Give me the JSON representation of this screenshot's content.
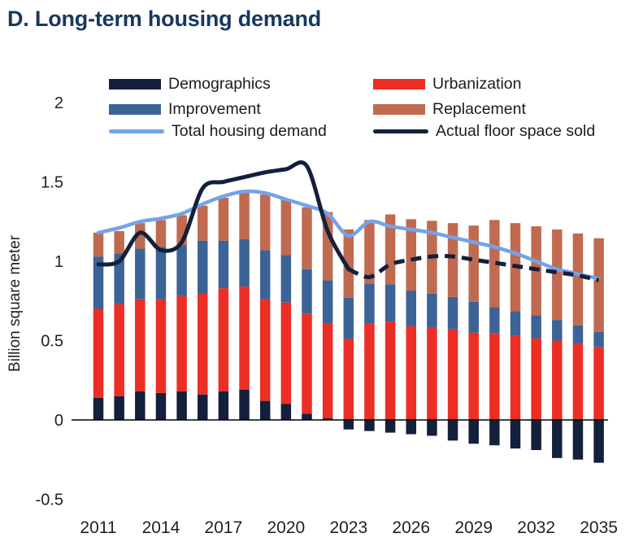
{
  "title": "D. Long-term housing demand",
  "colors": {
    "title": "#17375E",
    "text": "#212121",
    "axis_line": "#000000",
    "demographics": "#13203C",
    "urbanization": "#EC2E24",
    "improvement": "#3B6396",
    "replacement": "#C06A50",
    "total_line": "#74A3E8",
    "actual_line": "#13203C"
  },
  "legend": {
    "items": [
      {
        "label": "Demographics",
        "swatch": "bar",
        "series_index": 0
      },
      {
        "label": "Urbanization",
        "swatch": "bar",
        "series_index": 1
      },
      {
        "label": "Improvement",
        "swatch": "bar",
        "series_index": 2
      },
      {
        "label": "Replacement",
        "swatch": "bar",
        "series_index": 3
      },
      {
        "label": "Total housing demand",
        "swatch": "line",
        "series_index": 4
      },
      {
        "label": "Actual floor space sold",
        "swatch": "line",
        "series_index": 5
      }
    ]
  },
  "y_axis": {
    "label": "Billion square meter",
    "ticks": [
      "2",
      "1.5",
      "1",
      "0.5",
      "0",
      "-0.5"
    ],
    "tick_values": [
      2,
      1.5,
      1,
      0.5,
      0,
      -0.5
    ]
  },
  "x_axis": {
    "ticks": [
      2011,
      2014,
      2017,
      2020,
      2023,
      2026,
      2029,
      2032,
      2035
    ]
  },
  "chart_data": {
    "type": "bar",
    "subtype": "stacked-bar-with-lines",
    "title": "D. Long-term housing demand",
    "xlabel": "",
    "ylabel": "Billion square meter",
    "ylim": [
      -0.5,
      2
    ],
    "grid": false,
    "legend_position": "top",
    "x": [
      2011,
      2012,
      2013,
      2014,
      2015,
      2016,
      2017,
      2018,
      2019,
      2020,
      2021,
      2022,
      2023,
      2024,
      2025,
      2026,
      2027,
      2028,
      2029,
      2030,
      2031,
      2032,
      2033,
      2034,
      2035
    ],
    "series": [
      {
        "name": "Demographics",
        "type": "bar",
        "color": "#13203C",
        "values": [
          0.14,
          0.15,
          0.18,
          0.17,
          0.18,
          0.16,
          0.18,
          0.19,
          0.12,
          0.1,
          0.04,
          0.01,
          -0.06,
          -0.07,
          -0.08,
          -0.09,
          -0.1,
          -0.13,
          -0.15,
          -0.16,
          -0.18,
          -0.19,
          -0.24,
          -0.25,
          -0.27
        ]
      },
      {
        "name": "Urbanization",
        "type": "bar",
        "color": "#EC2E24",
        "values": [
          0.56,
          0.58,
          0.58,
          0.59,
          0.6,
          0.64,
          0.65,
          0.65,
          0.64,
          0.64,
          0.63,
          0.6,
          0.51,
          0.61,
          0.62,
          0.59,
          0.58,
          0.57,
          0.55,
          0.545,
          0.53,
          0.515,
          0.5,
          0.48,
          0.46
        ]
      },
      {
        "name": "Improvement",
        "type": "bar",
        "color": "#3B6396",
        "values": [
          0.33,
          0.32,
          0.32,
          0.33,
          0.32,
          0.33,
          0.3,
          0.3,
          0.31,
          0.3,
          0.28,
          0.27,
          0.26,
          0.25,
          0.235,
          0.225,
          0.215,
          0.205,
          0.195,
          0.165,
          0.155,
          0.145,
          0.13,
          0.115,
          0.095
        ]
      },
      {
        "name": "Replacement",
        "type": "bar",
        "color": "#C06A50",
        "values": [
          0.15,
          0.14,
          0.16,
          0.17,
          0.19,
          0.22,
          0.27,
          0.3,
          0.35,
          0.35,
          0.39,
          0.43,
          0.43,
          0.4,
          0.44,
          0.45,
          0.46,
          0.465,
          0.48,
          0.55,
          0.555,
          0.56,
          0.57,
          0.58,
          0.59
        ]
      },
      {
        "name": "Total housing demand",
        "type": "line",
        "style": "solid",
        "color": "#74A3E8",
        "values": [
          1.18,
          1.21,
          1.25,
          1.27,
          1.3,
          1.36,
          1.41,
          1.44,
          1.43,
          1.39,
          1.35,
          1.3,
          1.16,
          1.25,
          1.22,
          1.2,
          1.18,
          1.15,
          1.12,
          1.09,
          1.05,
          1.0,
          0.95,
          0.92,
          0.89
        ]
      },
      {
        "name": "Actual floor space sold",
        "type": "line",
        "style": "solid-then-dashed",
        "solid_until": 2023,
        "color": "#13203C",
        "values": [
          0.98,
          1.0,
          1.18,
          1.07,
          1.12,
          1.46,
          1.5,
          1.53,
          1.56,
          1.58,
          1.6,
          1.19,
          0.95,
          0.9,
          0.98,
          1.01,
          1.03,
          1.03,
          1.01,
          0.99,
          0.97,
          0.95,
          0.93,
          0.91,
          0.88
        ]
      }
    ]
  }
}
